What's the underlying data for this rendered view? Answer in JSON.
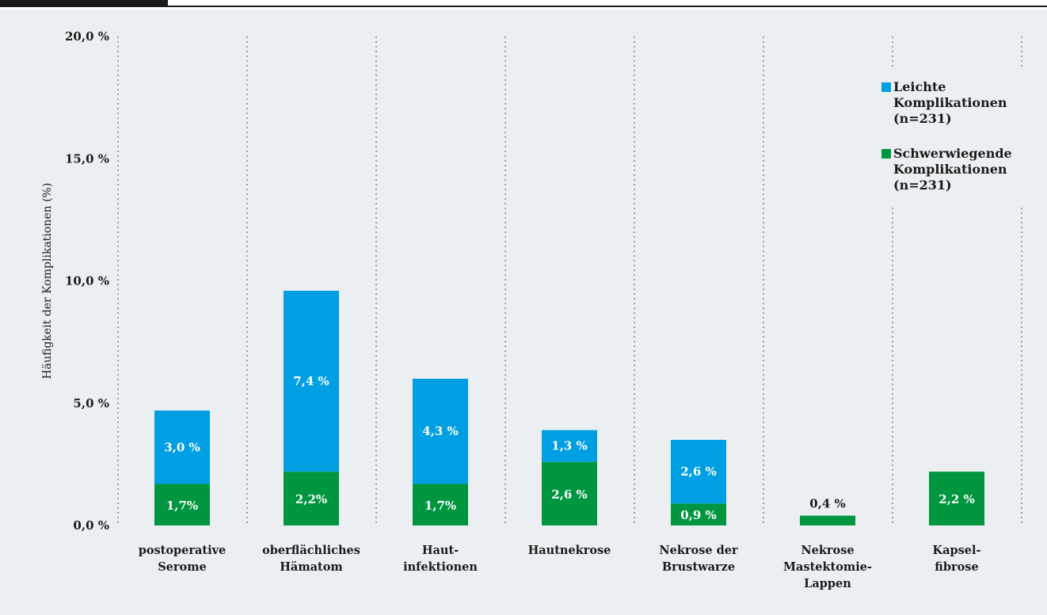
{
  "chart_data": {
    "type": "bar",
    "stacked": true,
    "ylabel": "Häufigkeit der Komplikationen (%)",
    "ylim": [
      0,
      20
    ],
    "yticks": [
      "0,0 %",
      "5,0 %",
      "10,0 %",
      "15,0 %",
      "20,0 %"
    ],
    "categories": [
      [
        "postoperative",
        "Serome"
      ],
      [
        "oberflächliches",
        "Hämatom"
      ],
      [
        "Haut-",
        "infektionen"
      ],
      [
        "Hautnekrose"
      ],
      [
        "Nekrose der",
        "Brustwarze"
      ],
      [
        "Nekrose",
        "Mastektomie-",
        "Lappen"
      ],
      [
        "Kapsel-",
        "fibrose"
      ]
    ],
    "series": [
      {
        "key": "severe",
        "legend": [
          "Schwerwiegende",
          "Komplikationen",
          "(n=231)"
        ],
        "color": "#009640",
        "values": [
          1.7,
          2.2,
          1.7,
          2.6,
          0.9,
          0.4,
          2.2
        ],
        "labels": [
          "1,7%",
          "2,2%",
          "1,7%",
          "2,6 %",
          "0,9 %",
          "0,4 %",
          "2,2 %"
        ]
      },
      {
        "key": "mild",
        "legend": [
          "Leichte",
          "Komplikationen",
          "(n=231)"
        ],
        "color": "#009fe3",
        "values": [
          3.0,
          7.4,
          4.3,
          1.3,
          2.6,
          null,
          null
        ],
        "labels": [
          "3,0 %",
          "7,4 %",
          "4,3 %",
          "1,3 %",
          "2,6 %",
          null,
          null
        ]
      }
    ],
    "grid": "vertical dotted separators",
    "legend_position": "top-right"
  }
}
